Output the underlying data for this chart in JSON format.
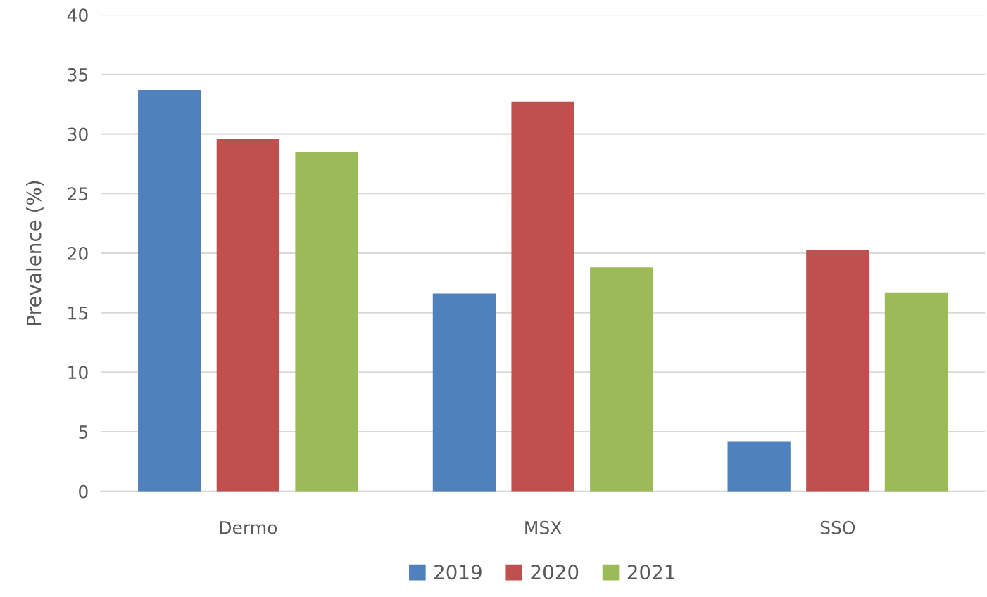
{
  "chart_data": {
    "type": "bar",
    "ylabel": "Prevalence (%)",
    "categories": [
      "Dermo",
      "MSX",
      "SSO"
    ],
    "series": [
      {
        "name": "2019",
        "color": "#4f81bd",
        "values": [
          33.7,
          16.6,
          4.2
        ]
      },
      {
        "name": "2020",
        "color": "#c0504d",
        "values": [
          29.6,
          32.7,
          20.3
        ]
      },
      {
        "name": "2021",
        "color": "#9bbb59",
        "values": [
          28.5,
          18.8,
          16.7
        ]
      }
    ],
    "ylim": [
      0,
      40
    ],
    "yticks": [
      0,
      5,
      10,
      15,
      20,
      25,
      30,
      35,
      40
    ],
    "grid": "y",
    "legend": "bottom"
  }
}
